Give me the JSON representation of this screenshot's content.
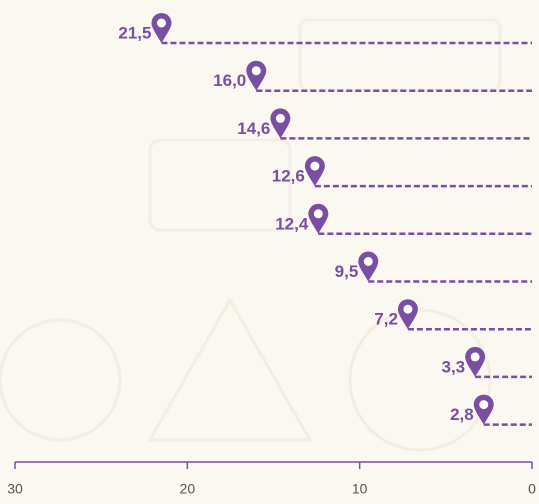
{
  "chart_data": {
    "type": "lollipop",
    "values": [
      21.5,
      16.0,
      14.6,
      12.6,
      12.4,
      9.5,
      7.2,
      3.3,
      2.8
    ],
    "value_labels": [
      "21,5",
      "16,0",
      "14,6",
      "12,6",
      "12,4",
      "9,5",
      "7,2",
      "3,3",
      "2,8"
    ],
    "color": "#7a4ea3",
    "xlim": [
      30,
      0
    ],
    "xticks": [
      30,
      20,
      10,
      0
    ]
  }
}
